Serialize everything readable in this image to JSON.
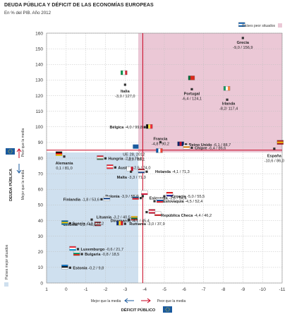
{
  "title": "DEUDA PÚBLICA Y DÉFICIT DE LAS ECONOMÍAS EUROPEAS",
  "subtitle": "En % del PIB. Año 2012",
  "legend": {
    "worse": "Países peor situados",
    "better": "Países mejor situados"
  },
  "colors": {
    "worse_zone": "#ebc8d6",
    "better_zone": "#cfe0ef",
    "red_line": "#c8001e",
    "eu_blue": "#1a5a9e"
  },
  "y_axis": {
    "label": "DEUDA PÚBLICA",
    "worse_hint": "Peor que la media",
    "better_hint": "Mejor que la media"
  },
  "x_axis": {
    "label": "DÉFICIT PÚBLICO",
    "better_hint": "Mejor que la media",
    "worse_hint": "Peor que la media"
  },
  "chart_data": {
    "type": "scatter",
    "title": "DEUDA PÚBLICA Y DÉFICIT DE LAS ECONOMÍAS EUROPEAS",
    "subtitle": "En % del PIB. Año 2012",
    "xlabel": "DÉFICIT PÚBLICO",
    "ylabel": "DEUDA PÚBLICA",
    "xlim": [
      1,
      -11
    ],
    "ylim": [
      0,
      160
    ],
    "x_ticks": [
      "1",
      "0",
      "-1",
      "-2",
      "-3",
      "-4",
      "-5",
      "-6",
      "-7",
      "-8",
      "-9",
      "-10",
      "-11"
    ],
    "y_ticks": [
      "0",
      "10",
      "20",
      "30",
      "40",
      "50",
      "60",
      "70",
      "80",
      "90",
      "100",
      "110",
      "120",
      "130",
      "140",
      "150",
      "160"
    ],
    "reference": {
      "label": "UE 28, 2012",
      "value": "-3,9 / 85,1",
      "x": -3.9,
      "y": 85.1
    },
    "grid": true,
    "points": [
      {
        "name": "Grecia",
        "value": "-9,0 / 156,9",
        "x": -9.0,
        "y": 156.9
      },
      {
        "name": "Italia",
        "value": "-3,0 / 127,0",
        "x": -3.0,
        "y": 127.0
      },
      {
        "name": "Portugal",
        "value": "-6,4 / 124,1",
        "x": -6.4,
        "y": 124.1
      },
      {
        "name": "Irlanda",
        "value": "-8,2/ 117,4",
        "x": -8.2,
        "y": 117.4
      },
      {
        "name": "Bélgica",
        "value": "-4,0 / 99,8",
        "x": -4.0,
        "y": 99.8
      },
      {
        "name": "Francia",
        "value": "-4,8 / 90,2",
        "x": -4.8,
        "y": 90.2
      },
      {
        "name": "Reino Unido",
        "value": "-6,1 / 88,7",
        "x": -6.1,
        "y": 88.7
      },
      {
        "name": "Chipre",
        "value": "-6,4 / 86,6",
        "x": -6.4,
        "y": 86.6
      },
      {
        "name": "España",
        "value": "-10,6 / 86,0",
        "x": -10.6,
        "y": 86.0
      },
      {
        "name": "Hungría",
        "value": "-2,0 / 79,8",
        "x": -2.0,
        "y": 79.8
      },
      {
        "name": "Alemania",
        "value": "0,1 / 81,0",
        "x": 0.1,
        "y": 81.0
      },
      {
        "name": "Austria",
        "value": "-2,5 / 74,0",
        "x": -2.5,
        "y": 74.0
      },
      {
        "name": "Malta",
        "value": "-3,3 / 71,3",
        "x": -3.3,
        "y": 71.3
      },
      {
        "name": "Holanda",
        "value": "-4,1 / 71,3",
        "x": -4.1,
        "y": 71.3
      },
      {
        "name": "Eslovenia",
        "value": "-3,8 / 54,4",
        "x": -3.8,
        "y": 54.4
      },
      {
        "name": "Polonia",
        "value": "-3,9 / 55,6",
        "x": -3.9,
        "y": 55.6
      },
      {
        "name": "Finlandia",
        "value": "-1,8 / 53,6",
        "x": -1.8,
        "y": 53.6
      },
      {
        "name": "Croacia",
        "value": "-5,0 / 55,5",
        "x": -5.0,
        "y": 55.5
      },
      {
        "name": "Eslovaquia",
        "value": "-4,5 / 52,4",
        "x": -4.5,
        "y": 52.4
      },
      {
        "name": "Lituania",
        "value": "-3,2 / 40,5",
        "x": -3.2,
        "y": 40.5
      },
      {
        "name": "República Checa",
        "value": "-4,4 / 46,2",
        "x": -4.4,
        "y": 46.2
      },
      {
        "name": "Letonia",
        "value": "-1,3 / 40,6",
        "x": -1.3,
        "y": 40.6
      },
      {
        "name": "Dinamarca",
        "value": "-4,1 / 45,4",
        "x": -4.1,
        "y": 45.4
      },
      {
        "name": "Suecia",
        "value": "-0,2 / 38,2",
        "x": -0.2,
        "y": 38.2
      },
      {
        "name": "Rumanía",
        "value": "-3,0 / 37,9",
        "x": -3.0,
        "y": 37.9
      },
      {
        "name": "Luxemburgo",
        "value": "-0,6 / 21,7",
        "x": -0.6,
        "y": 21.7
      },
      {
        "name": "Bulgaria",
        "value": "-0,8 / 18,5",
        "x": -0.8,
        "y": 18.5
      },
      {
        "name": "Estonia",
        "value": "-0,2 / 9,8",
        "x": -0.2,
        "y": 9.8
      }
    ]
  }
}
